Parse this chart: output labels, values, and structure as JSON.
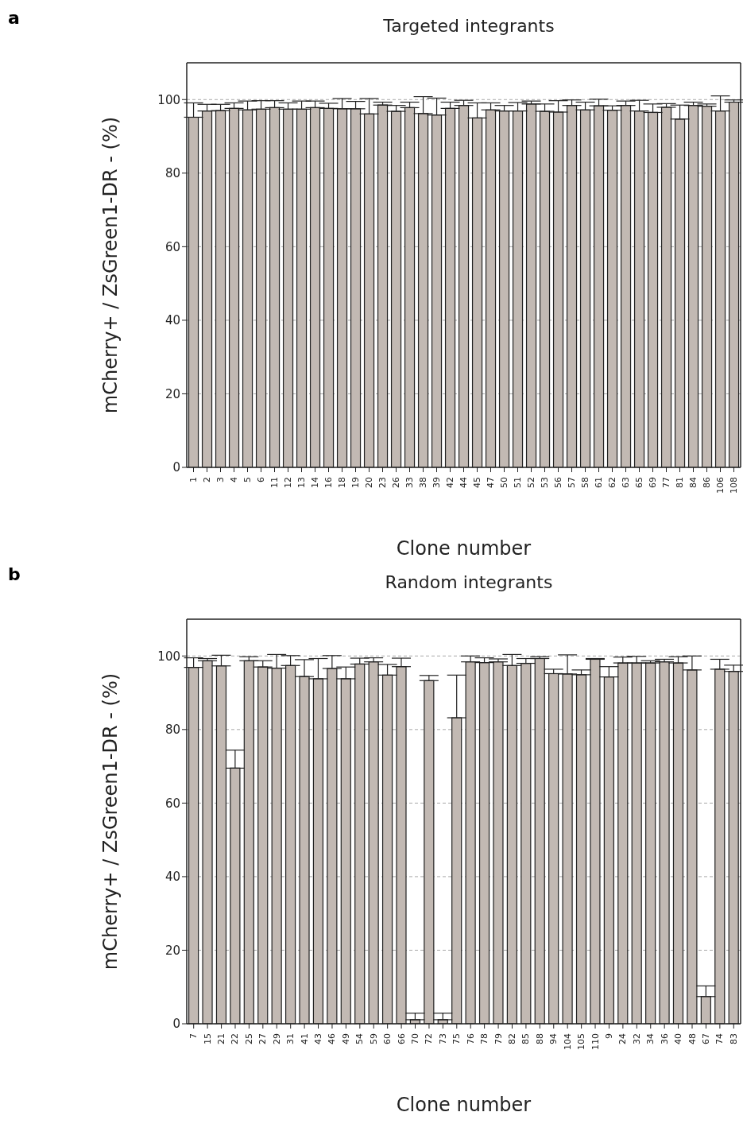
{
  "chart_data": [
    {
      "type": "bar",
      "title": "Targeted integrants",
      "xlabel": "Clone number",
      "ylabel": "mCherry+ / ZsGreen1-DR - (%)",
      "annotations": [
        "a"
      ],
      "categories": [
        "1",
        "2",
        "3",
        "4",
        "5",
        "6",
        "11",
        "12",
        "13",
        "14",
        "16",
        "18",
        "19",
        "20",
        "23",
        "26",
        "33",
        "38",
        "39",
        "42",
        "44",
        "45",
        "47",
        "50",
        "51",
        "52",
        "53",
        "56",
        "57",
        "58",
        "61",
        "62",
        "63",
        "65",
        "69",
        "77",
        "81",
        "84",
        "86",
        "106",
        "108"
      ],
      "values": [
        95.2,
        96.9,
        97.0,
        97.6,
        97.2,
        97.4,
        97.8,
        97.4,
        97.4,
        97.8,
        97.6,
        97.5,
        97.5,
        96.1,
        98.5,
        96.8,
        97.8,
        96.2,
        95.8,
        97.6,
        98.4,
        95.0,
        97.2,
        96.9,
        96.9,
        98.8,
        96.8,
        96.6,
        98.4,
        97.2,
        98.3,
        97.1,
        98.4,
        96.9,
        96.5,
        97.9,
        94.7,
        98.4,
        98.2,
        96.9,
        99.3
      ],
      "errors": [
        [
          95.2,
          99.1
        ],
        [
          96.9,
          98.7
        ],
        [
          97.0,
          98.7
        ],
        [
          97.6,
          99.1
        ],
        [
          97.2,
          99.6
        ],
        [
          97.4,
          99.7
        ],
        [
          97.8,
          99.7
        ],
        [
          97.4,
          99.1
        ],
        [
          97.4,
          99.6
        ],
        [
          97.8,
          99.6
        ],
        [
          97.6,
          99.0
        ],
        [
          97.5,
          100.3
        ],
        [
          97.5,
          99.5
        ],
        [
          96.1,
          100.3
        ],
        [
          98.5,
          99.3
        ],
        [
          96.8,
          98.4
        ],
        [
          97.8,
          99.3
        ],
        [
          96.2,
          100.8
        ],
        [
          95.8,
          100.4
        ],
        [
          97.6,
          99.3
        ],
        [
          98.4,
          99.8
        ],
        [
          95.0,
          99.1
        ],
        [
          97.2,
          99.1
        ],
        [
          96.9,
          98.4
        ],
        [
          96.9,
          99.2
        ],
        [
          98.8,
          99.6
        ],
        [
          96.8,
          98.8
        ],
        [
          96.6,
          99.7
        ],
        [
          98.4,
          99.9
        ],
        [
          97.2,
          99.3
        ],
        [
          98.3,
          100.1
        ],
        [
          97.1,
          98.3
        ],
        [
          98.4,
          99.6
        ],
        [
          96.9,
          99.8
        ],
        [
          96.5,
          98.8
        ],
        [
          97.9,
          98.9
        ],
        [
          94.7,
          98.5
        ],
        [
          98.4,
          99.3
        ],
        [
          98.2,
          98.8
        ],
        [
          96.9,
          101.0
        ],
        [
          99.3,
          99.9
        ]
      ],
      "color": "#c2b9b3",
      "ylim": [
        0,
        110
      ],
      "yticks": [
        0,
        20,
        40,
        60,
        80,
        100
      ],
      "grid": "y",
      "legend": false
    },
    {
      "type": "bar",
      "title": "Random integrants",
      "xlabel": "Clone number",
      "ylabel": "mCherry+ / ZsGreen1-DR - (%)",
      "annotations": [
        "b"
      ],
      "categories": [
        "7",
        "15",
        "21",
        "22",
        "25",
        "27",
        "29",
        "31",
        "41",
        "43",
        "46",
        "49",
        "54",
        "59",
        "60",
        "66",
        "70",
        "72",
        "73",
        "75",
        "76",
        "78",
        "79",
        "82",
        "85",
        "88",
        "94",
        "104",
        "105",
        "110",
        "9",
        "24",
        "32",
        "34",
        "36",
        "40",
        "48",
        "67",
        "74",
        "83"
      ],
      "values": [
        96.9,
        98.7,
        97.3,
        69.5,
        98.7,
        97.0,
        96.7,
        97.4,
        94.4,
        93.8,
        96.6,
        93.8,
        97.8,
        98.4,
        94.8,
        97.1,
        1.1,
        93.3,
        1.1,
        83.2,
        98.4,
        98.2,
        98.4,
        97.4,
        98.0,
        99.3,
        95.2,
        95.1,
        94.9,
        99.1,
        94.3,
        98.1,
        98.1,
        98.1,
        98.4,
        98.1,
        96.2,
        7.4,
        96.4,
        95.8
      ],
      "errors": [
        [
          96.9,
          99.5
        ],
        [
          98.7,
          99.3
        ],
        [
          97.3,
          100.2
        ],
        [
          69.5,
          74.4
        ],
        [
          98.7,
          99.8
        ],
        [
          97.0,
          98.7
        ],
        [
          96.7,
          100.4
        ],
        [
          97.4,
          100.1
        ],
        [
          94.4,
          99.0
        ],
        [
          93.8,
          99.3
        ],
        [
          96.6,
          100.1
        ],
        [
          93.8,
          97.0
        ],
        [
          97.8,
          99.4
        ],
        [
          98.4,
          99.5
        ],
        [
          94.8,
          97.7
        ],
        [
          97.1,
          99.4
        ],
        [
          1.1,
          2.9
        ],
        [
          93.3,
          94.7
        ],
        [
          1.1,
          2.9
        ],
        [
          83.2,
          94.8
        ],
        [
          98.4,
          100.0
        ],
        [
          98.2,
          99.5
        ],
        [
          98.4,
          99.2
        ],
        [
          97.4,
          100.4
        ],
        [
          98.0,
          99.3
        ],
        [
          99.3,
          99.8
        ],
        [
          95.2,
          96.4
        ],
        [
          95.1,
          100.3
        ],
        [
          94.9,
          96.2
        ],
        [
          99.1,
          99.3
        ],
        [
          94.3,
          97.1
        ],
        [
          98.1,
          99.7
        ],
        [
          98.1,
          99.9
        ],
        [
          98.1,
          98.7
        ],
        [
          98.4,
          99.1
        ],
        [
          98.1,
          99.8
        ],
        [
          96.2,
          100.0
        ],
        [
          7.4,
          10.3
        ],
        [
          96.4,
          99.1
        ],
        [
          95.8,
          97.5
        ]
      ],
      "color": "#c2b9b3",
      "ylim": [
        0,
        110
      ],
      "yticks": [
        0,
        20,
        40,
        60,
        80,
        100
      ],
      "grid": "y",
      "legend": false
    }
  ]
}
